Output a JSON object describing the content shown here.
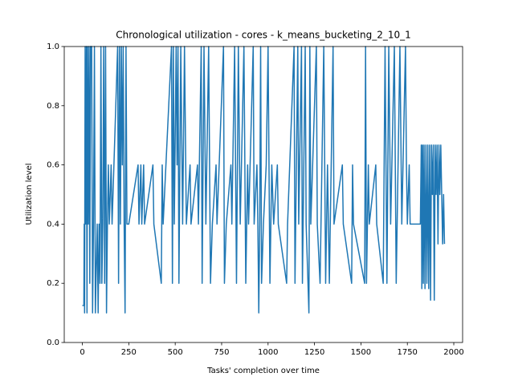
{
  "chart_data": {
    "type": "line",
    "title": "Chronological utilization - cores - k_means_bucketing_2_10_1",
    "x_label": "Tasks' completion over time",
    "y_label": "Utilization level",
    "xlim": [
      -97.5,
      2047.5
    ],
    "ylim": [
      0,
      1
    ],
    "xticks": [
      0,
      250,
      500,
      750,
      1000,
      1250,
      1500,
      1750,
      2000
    ],
    "yticks": [
      {
        "value": 0,
        "label": "0.0"
      },
      {
        "value": 0.2,
        "label": "0.2"
      },
      {
        "value": 0.4,
        "label": "0.4"
      },
      {
        "value": 0.6,
        "label": "0.6"
      },
      {
        "value": 0.8,
        "label": "0.8"
      },
      {
        "value": 1,
        "label": "1.0"
      }
    ],
    "series": [
      {
        "color": "#1f77b4",
        "x": [
          0,
          8,
          10,
          12,
          15,
          18,
          22,
          25,
          28,
          32,
          36,
          40,
          44,
          50,
          55,
          60,
          65,
          70,
          80,
          85,
          90,
          95,
          100,
          105,
          110,
          115,
          120,
          125,
          130,
          135,
          140,
          145,
          155,
          160,
          190,
          195,
          200,
          205,
          210,
          215,
          220,
          225,
          230,
          235,
          240,
          250,
          300,
          305,
          315,
          320,
          330,
          335,
          380,
          385,
          425,
          430,
          435,
          480,
          485,
          490,
          495,
          505,
          510,
          515,
          520,
          530,
          540,
          550,
          560,
          580,
          585,
          620,
          625,
          640,
          645,
          655,
          665,
          680,
          690,
          700,
          720,
          725,
          760,
          765,
          775,
          800,
          805,
          820,
          830,
          840,
          850,
          870,
          880,
          890,
          895,
          920,
          925,
          940,
          945,
          950,
          955,
          960,
          965,
          975,
          990,
          1000,
          1010,
          1020,
          1030,
          1050,
          1055,
          1100,
          1105,
          1140,
          1145,
          1160,
          1165,
          1180,
          1185,
          1200,
          1205,
          1220,
          1225,
          1230,
          1260,
          1265,
          1280,
          1290,
          1300,
          1310,
          1320,
          1330,
          1350,
          1355,
          1400,
          1405,
          1450,
          1455,
          1460,
          1520,
          1525,
          1530,
          1540,
          1545,
          1580,
          1585,
          1620,
          1630,
          1640,
          1650,
          1660,
          1680,
          1690,
          1700,
          1710,
          1720,
          1740,
          1745,
          1750,
          1760,
          1765,
          1820,
          1825,
          1828,
          1832,
          1836,
          1840,
          1845,
          1850,
          1855,
          1860,
          1865,
          1870,
          1875,
          1880,
          1885,
          1890,
          1895,
          1900,
          1905,
          1910,
          1915,
          1920,
          1925,
          1930,
          1935,
          1940,
          1945,
          1950
        ],
        "values": [
          0.125,
          0.125,
          0.4,
          0.1,
          1,
          0.4,
          1,
          0.1,
          1,
          0.4,
          1,
          0.2,
          1,
          1,
          0.1,
          0.4,
          1,
          0.1,
          0.4,
          0.1,
          0.4,
          0.2,
          1,
          0.2,
          0.4,
          1,
          0.2,
          1,
          0.1,
          0.4,
          0.6,
          0.4,
          0.6,
          0.4,
          1,
          0.2,
          1,
          0.4,
          1,
          0.6,
          1,
          0.4,
          0.1,
          1,
          0.4,
          0.4,
          0.6,
          0.4,
          0.6,
          0.4,
          0.6,
          0.4,
          0.6,
          0.4,
          0.2,
          0.6,
          0.4,
          1,
          0.2,
          1,
          0.4,
          1,
          0.6,
          1,
          0.2,
          1,
          0.4,
          1,
          0.4,
          0.6,
          0.4,
          0.6,
          0.4,
          1,
          0.2,
          1,
          0.4,
          1,
          0.2,
          0.4,
          0.6,
          0.4,
          1,
          0.2,
          0.4,
          0.6,
          0.4,
          1,
          0.2,
          1,
          0.4,
          1,
          0.2,
          0.6,
          0.4,
          1,
          0.4,
          0.6,
          0.4,
          0.1,
          0.4,
          1,
          0.2,
          0.4,
          0.6,
          1,
          0.2,
          0.6,
          0.4,
          0.6,
          0.4,
          0.2,
          0.4,
          1,
          0.2,
          1,
          0.4,
          1,
          0.2,
          1,
          0.4,
          0.1,
          1,
          0.4,
          1,
          0.4,
          0.2,
          0.6,
          1,
          0.2,
          0.6,
          0.2,
          1,
          0.4,
          0.6,
          0.4,
          0.2,
          0.6,
          0.4,
          0.2,
          1,
          0.2,
          0.6,
          0.4,
          0.6,
          0.4,
          0.2,
          1,
          0.2,
          1,
          0.4,
          1,
          0.2,
          0.6,
          1,
          0.4,
          1,
          0.6,
          0.4,
          0.6,
          0.4,
          0.4,
          0.667,
          0.182,
          0.667,
          0.2,
          0.667,
          0.182,
          0.667,
          0.2,
          0.667,
          0.182,
          0.667,
          0.143,
          0.667,
          0.5,
          0.667,
          0.143,
          0.667,
          0.5,
          0.667,
          0.333,
          0.667,
          0.5,
          0.667,
          0.5,
          0.333,
          0.5,
          0.333
        ]
      }
    ]
  }
}
